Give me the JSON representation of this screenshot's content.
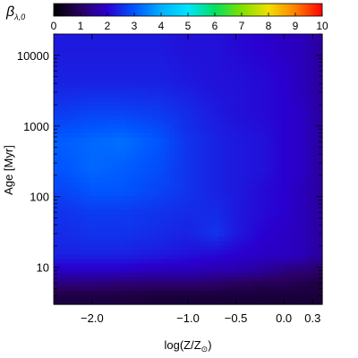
{
  "chart_data": {
    "type": "heatmap",
    "colorbar": {
      "label": "β",
      "label_subscript": "λ,0",
      "range": [
        0,
        10
      ],
      "tick_labels": [
        "0",
        "1",
        "2",
        "3",
        "4",
        "5",
        "6",
        "7",
        "8",
        "9",
        "10"
      ],
      "ticks": [
        0,
        1,
        2,
        3,
        4,
        5,
        6,
        7,
        8,
        9,
        10
      ],
      "colors": [
        "#000000",
        "#2a0060",
        "#2a00d0",
        "#0055ff",
        "#00b0ff",
        "#00e5ff",
        "#00e060",
        "#80e000",
        "#f0e000",
        "#ff8000",
        "#ff0000"
      ]
    },
    "xlabel": "log(Z/Z",
    "xlabel_subscript": "⊙",
    "xlabel_suffix": ")",
    "xlim": [
      -2.4,
      0.4
    ],
    "xticks": [
      -2.0,
      -1.0,
      -0.5,
      0.0,
      0.3
    ],
    "xtick_labels": [
      "−2.0",
      "−1.0",
      "−0.5",
      "0.0",
      "0.3"
    ],
    "ylabel": "Age [Myr]",
    "yscale": "log",
    "ylim": [
      3,
      20000
    ],
    "yticks": [
      10,
      100,
      1000,
      10000
    ],
    "ytick_labels": [
      "10",
      "100",
      "1000",
      "10000"
    ],
    "grid": false,
    "x": [
      -2.3,
      -2.0,
      -1.7,
      -1.3,
      -1.0,
      -0.7,
      -0.5,
      -0.2,
      0.0,
      0.2,
      0.35
    ],
    "y": [
      4,
      6,
      9,
      15,
      30,
      60,
      120,
      250,
      600,
      1500,
      4000,
      12000
    ],
    "z": [
      [
        0.7,
        0.7,
        0.7,
        0.6,
        0.6,
        0.6,
        0.6,
        0.6,
        0.6,
        0.6,
        0.6
      ],
      [
        1.3,
        1.3,
        1.2,
        1.2,
        1.2,
        1.1,
        1.0,
        0.9,
        0.9,
        0.8,
        0.7
      ],
      [
        1.9,
        1.9,
        1.9,
        1.8,
        1.8,
        1.7,
        1.7,
        1.5,
        1.3,
        1.2,
        1.1
      ],
      [
        2.4,
        2.4,
        2.4,
        2.3,
        2.2,
        2.1,
        2.0,
        1.9,
        1.9,
        1.8,
        1.6
      ],
      [
        2.5,
        2.6,
        2.6,
        2.5,
        2.4,
        2.6,
        2.3,
        2.0,
        1.9,
        1.8,
        1.6
      ],
      [
        2.6,
        2.7,
        2.7,
        2.6,
        2.5,
        2.5,
        2.3,
        2.1,
        2.0,
        1.8,
        1.6
      ],
      [
        2.8,
        3.0,
        3.0,
        2.8,
        2.6,
        2.4,
        2.3,
        2.1,
        2.0,
        1.8,
        1.6
      ],
      [
        3.0,
        3.2,
        3.1,
        2.9,
        2.6,
        2.4,
        2.3,
        2.2,
        2.0,
        1.9,
        1.6
      ],
      [
        3.1,
        3.2,
        3.3,
        3.0,
        2.6,
        2.4,
        2.3,
        2.2,
        2.0,
        1.9,
        1.6
      ],
      [
        2.7,
        2.8,
        2.8,
        2.7,
        2.5,
        2.3,
        2.2,
        2.1,
        2.0,
        1.9,
        1.6
      ],
      [
        2.4,
        2.4,
        2.4,
        2.4,
        2.3,
        2.2,
        2.2,
        2.1,
        2.0,
        1.8,
        1.6
      ],
      [
        2.3,
        2.3,
        2.3,
        2.3,
        2.2,
        2.2,
        2.1,
        2.0,
        1.9,
        1.8,
        1.6
      ]
    ]
  }
}
